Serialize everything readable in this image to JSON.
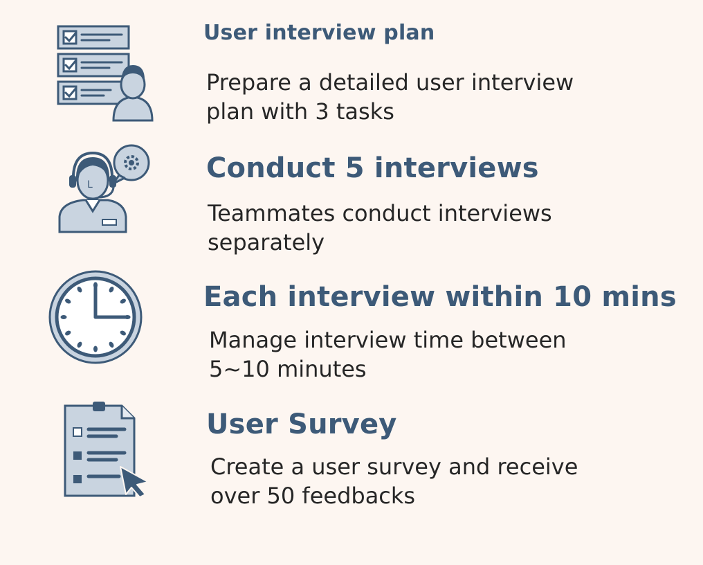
{
  "colors": {
    "background": "#fdf6f1",
    "title": "#3d5a78",
    "text": "#262626",
    "icon_fill": "#c9d4e0",
    "icon_stroke": "#3d5a78"
  },
  "items": [
    {
      "icon": "checklist-person-icon",
      "title": "User interview plan",
      "desc_line1": "Prepare a detailed user interview",
      "desc_line2": "plan with 3 tasks"
    },
    {
      "icon": "headset-agent-icon",
      "title": "Conduct 5 interviews",
      "desc_line1": "Teammates conduct interviews",
      "desc_line2": "separately"
    },
    {
      "icon": "clock-icon",
      "title": "Each interview within 10 mins",
      "desc_line1": "Manage interview time between",
      "desc_line2": "5~10 minutes"
    },
    {
      "icon": "survey-form-icon",
      "title": "User Survey",
      "desc_line1": "Create a user survey and receive",
      "desc_line2": "over 50 feedbacks"
    }
  ]
}
